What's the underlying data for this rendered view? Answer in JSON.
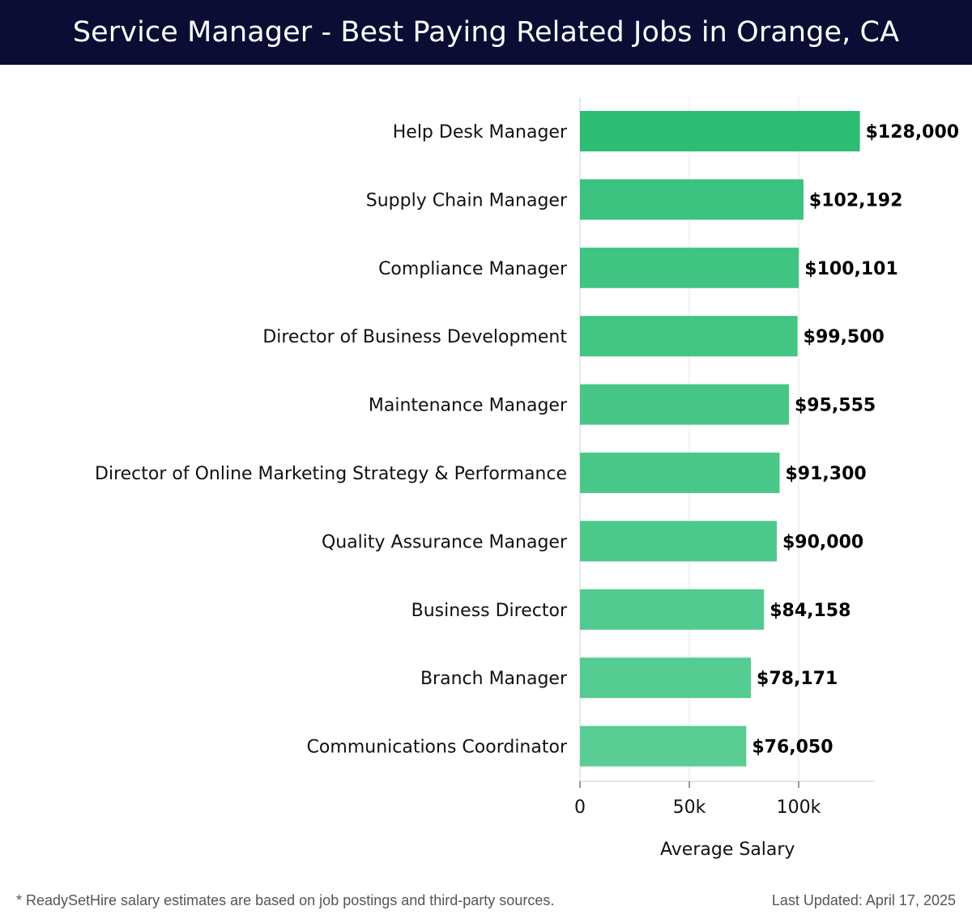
{
  "header": {
    "title": "Service Manager - Best Paying Related Jobs in Orange, CA"
  },
  "chart_data": {
    "type": "bar",
    "orientation": "horizontal",
    "categories": [
      "Help Desk Manager",
      "Supply Chain Manager",
      "Compliance Manager",
      "Director of Business Development",
      "Maintenance Manager",
      "Director of Online Marketing Strategy & Performance",
      "Quality Assurance Manager",
      "Business Director",
      "Branch Manager",
      "Communications Coordinator"
    ],
    "values": [
      128000,
      102192,
      100101,
      99500,
      95555,
      91300,
      90000,
      84158,
      78171,
      76050
    ],
    "value_labels": [
      "$128,000",
      "$102,192",
      "$100,101",
      "$99,500",
      "$95,555",
      "$91,300",
      "$90,000",
      "$84,158",
      "$78,171",
      "$76,050"
    ],
    "xlabel": "Average Salary",
    "ylabel": "",
    "xlim": [
      0,
      135000
    ],
    "xticks": [
      0,
      50000,
      100000
    ],
    "xtick_labels": [
      "0",
      "50k",
      "100k"
    ],
    "grid": true,
    "colors": {
      "top_bar": "#2dbd74",
      "bars": [
        "#2dbd74",
        "#3cc27f",
        "#40c482",
        "#43c584",
        "#47c687",
        "#4ac88a",
        "#4ec98c",
        "#52ca8f",
        "#55cc92",
        "#59cd94"
      ]
    }
  },
  "footer": {
    "note": "* ReadySetHire salary estimates are based on job postings and third-party sources.",
    "updated": "Last Updated: April 17, 2025"
  }
}
